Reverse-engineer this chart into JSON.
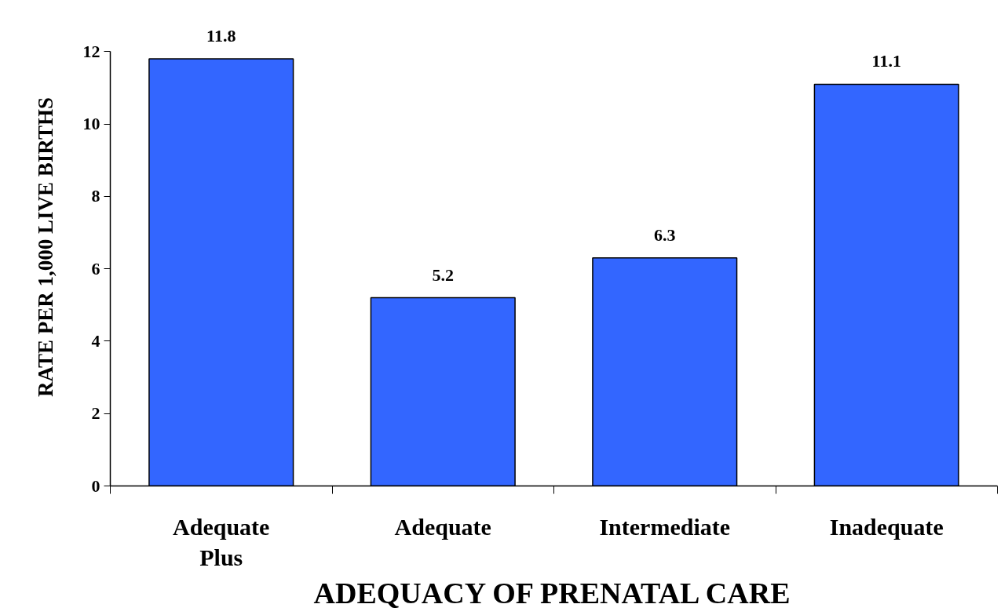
{
  "chart_data": {
    "type": "bar",
    "xlabel": "ADEQUACY OF PRENATAL CARE",
    "ylabel": "RATE PER 1,000 LIVE BIRTHS",
    "categories": [
      "Adequate\nPlus",
      "Adequate",
      "Intermediate",
      "Inadequate"
    ],
    "values": [
      11.8,
      5.2,
      6.3,
      11.1
    ],
    "color": "#3366ff",
    "ylim": [
      0,
      12
    ],
    "yticks": [
      0,
      2,
      4,
      6,
      8,
      10,
      12
    ],
    "data_labels": true,
    "grid": false
  }
}
